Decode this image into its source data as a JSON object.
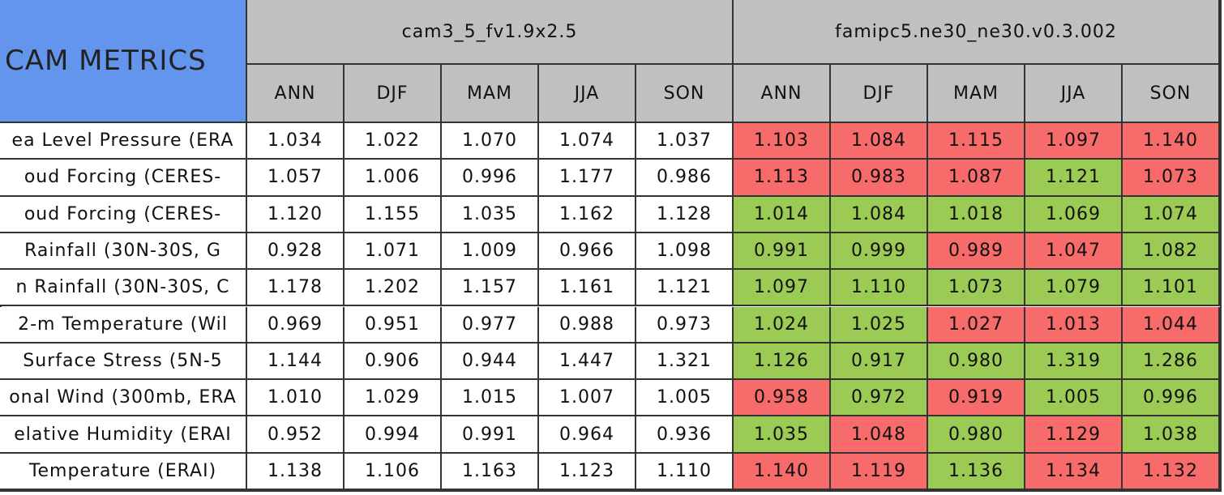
{
  "header": {
    "title": "CAM METRICS",
    "groups": [
      {
        "name": "cam3_5_fv1.9x2.5",
        "seasons": [
          "ANN",
          "DJF",
          "MAM",
          "JJA",
          "SON"
        ]
      },
      {
        "name": "famipc5.ne30_ne30.v0.3.002",
        "seasons": [
          "ANN",
          "DJF",
          "MAM",
          "JJA",
          "SON"
        ],
        "cell_colors": [
          [
            "#f86b6b",
            "#f86b6b",
            "#f86b6b",
            "#f86b6b",
            "#f86b6b"
          ],
          [
            "#f86b6b",
            "#f86b6b",
            "#f86b6b",
            "#9ccb55",
            "#f86b6b"
          ],
          [
            "#9ccb55",
            "#9ccb55",
            "#9ccb55",
            "#9ccb55",
            "#9ccb55"
          ],
          [
            "#9ccb55",
            "#9ccb55",
            "#f86b6b",
            "#f86b6b",
            "#9ccb55"
          ],
          [
            "#9ccb55",
            "#9ccb55",
            "#9ccb55",
            "#9ccb55",
            "#9ccb55"
          ],
          [
            "#9ccb55",
            "#9ccb55",
            "#f86b6b",
            "#f86b6b",
            "#f86b6b"
          ],
          [
            "#9ccb55",
            "#9ccb55",
            "#9ccb55",
            "#9ccb55",
            "#9ccb55"
          ],
          [
            "#f86b6b",
            "#9ccb55",
            "#f86b6b",
            "#9ccb55",
            "#9ccb55"
          ],
          [
            "#9ccb55",
            "#f86b6b",
            "#9ccb55",
            "#f86b6b",
            "#9ccb55"
          ],
          [
            "#f86b6b",
            "#f86b6b",
            "#9ccb55",
            "#f86b6b",
            "#f86b6b"
          ]
        ]
      }
    ]
  },
  "rows": [
    {
      "label": "ea Level Pressure (ERA",
      "values": [
        "1.034",
        "1.022",
        "1.070",
        "1.074",
        "1.037",
        "1.103",
        "1.084",
        "1.115",
        "1.097",
        "1.140"
      ]
    },
    {
      "label": "oud Forcing (CERES-",
      "values": [
        "1.057",
        "1.006",
        "0.996",
        "1.177",
        "0.986",
        "1.113",
        "0.983",
        "1.087",
        "1.121",
        "1.073"
      ]
    },
    {
      "label": "oud Forcing (CERES-",
      "values": [
        "1.120",
        "1.155",
        "1.035",
        "1.162",
        "1.128",
        "1.014",
        "1.084",
        "1.018",
        "1.069",
        "1.074"
      ]
    },
    {
      "label": "Rainfall (30N-30S, G",
      "values": [
        "0.928",
        "1.071",
        "1.009",
        "0.966",
        "1.098",
        "0.991",
        "0.999",
        "0.989",
        "1.047",
        "1.082"
      ]
    },
    {
      "label": "n Rainfall (30N-30S, C",
      "values": [
        "1.178",
        "1.202",
        "1.157",
        "1.161",
        "1.121",
        "1.097",
        "1.110",
        "1.073",
        "1.079",
        "1.101"
      ]
    },
    {
      "label": "2-m Temperature (Wil",
      "values": [
        "0.969",
        "0.951",
        "0.977",
        "0.988",
        "0.973",
        "1.024",
        "1.025",
        "1.027",
        "1.013",
        "1.044"
      ]
    },
    {
      "label": "Surface Stress (5N-5",
      "values": [
        "1.144",
        "0.906",
        "0.944",
        "1.447",
        "1.321",
        "1.126",
        "0.917",
        "0.980",
        "1.319",
        "1.286"
      ]
    },
    {
      "label": "onal Wind (300mb, ERA",
      "values": [
        "1.010",
        "1.029",
        "1.015",
        "1.007",
        "1.005",
        "0.958",
        "0.972",
        "0.919",
        "1.005",
        "0.996"
      ]
    },
    {
      "label": "elative Humidity (ERAI",
      "values": [
        "0.952",
        "0.994",
        "0.991",
        "0.964",
        "0.936",
        "1.035",
        "1.048",
        "0.980",
        "1.129",
        "1.038"
      ]
    },
    {
      "label": "Temperature (ERAI)",
      "values": [
        "1.138",
        "1.106",
        "1.163",
        "1.123",
        "1.110",
        "1.140",
        "1.119",
        "1.136",
        "1.134",
        "1.132"
      ]
    }
  ]
}
